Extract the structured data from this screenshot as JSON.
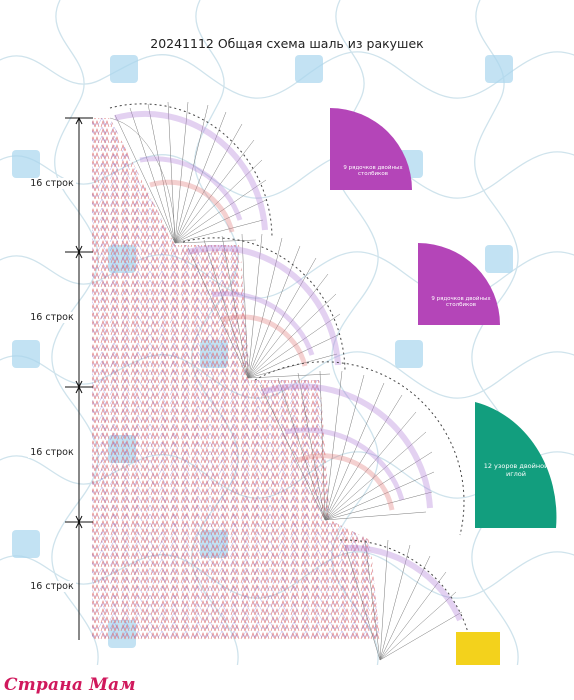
{
  "title": "20241112 Общая схема шаль из ракушек",
  "ruler": {
    "labels": [
      "16 строк",
      "16 строк",
      "16 строк",
      "16 строк"
    ]
  },
  "legend_shapes": [
    {
      "text": "9 рядочков двойных столбиков",
      "color": "#b445b8"
    },
    {
      "text": "9 рядочков двойных столбиков",
      "color": "#b445b8"
    },
    {
      "text": "12 узоров двойной иглой",
      "color": "#129e7e"
    }
  ],
  "watermark": "Страна Мам",
  "colors": {
    "magenta": "#b445b8",
    "teal": "#129e7e",
    "yellow": "#f3d21c",
    "brand": "#d0185c"
  }
}
